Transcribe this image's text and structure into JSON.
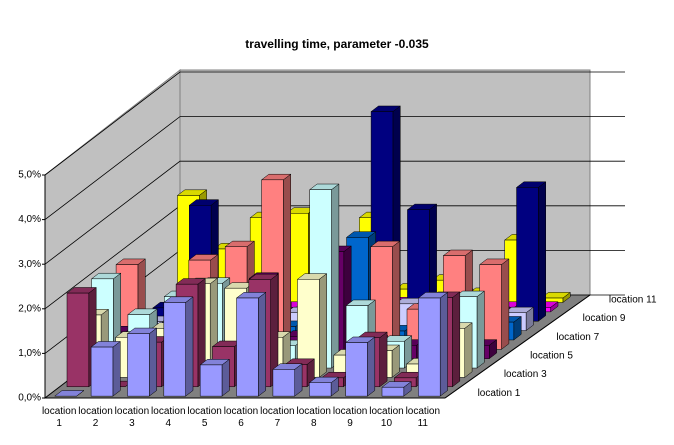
{
  "chart_data": {
    "type": "bar3d",
    "title": "travelling time, parameter -0.035",
    "categories": [
      "location 1",
      "location 2",
      "location 3",
      "location 4",
      "location 5",
      "location 6",
      "location 7",
      "location 8",
      "location 9",
      "location 10",
      "location 11"
    ],
    "ylim": [
      0,
      5
    ],
    "yticks": [
      {
        "value": 0,
        "label": "0,0%"
      },
      {
        "value": 1,
        "label": "1,0%"
      },
      {
        "value": 2,
        "label": "2,0%"
      },
      {
        "value": 3,
        "label": "3,0%"
      },
      {
        "value": 4,
        "label": "4,0%"
      },
      {
        "value": 5,
        "label": "5,0%"
      }
    ],
    "grid": true,
    "series": [
      {
        "name": "location 1",
        "color": "#9999ff",
        "values": [
          0.0,
          1.1,
          1.4,
          2.1,
          0.7,
          2.2,
          0.6,
          0.3,
          1.2,
          0.2,
          2.2
        ]
      },
      {
        "name": null,
        "color": "#993366",
        "values": [
          2.1,
          0.0,
          1.0,
          2.3,
          0.9,
          2.4,
          0.5,
          0.2,
          1.1,
          0.2,
          2.0
        ]
      },
      {
        "name": "location 3",
        "color": "#ffffcc",
        "values": [
          1.4,
          0.9,
          1.1,
          2.1,
          2.0,
          0.9,
          2.2,
          0.5,
          0.6,
          0.3,
          1.1
        ]
      },
      {
        "name": null,
        "color": "#ccffff",
        "values": [
          2.0,
          1.2,
          1.6,
          1.9,
          0.4,
          0.5,
          4.0,
          1.4,
          0.6,
          1.1,
          1.6
        ]
      },
      {
        "name": "location 5",
        "color": "#660066",
        "values": [
          0.6,
          0.5,
          1.6,
          0.4,
          1.8,
          0.5,
          2.4,
          0.4,
          0.3,
          0.4,
          0.3
        ]
      },
      {
        "name": null,
        "color": "#ff8080",
        "values": [
          1.9,
          0.2,
          2.0,
          2.3,
          3.8,
          0.5,
          0.4,
          2.3,
          0.9,
          2.1,
          1.9
        ]
      },
      {
        "name": "location 7",
        "color": "#0066cc",
        "values": [
          0.4,
          0.3,
          0.3,
          0.4,
          0.3,
          0.4,
          2.3,
          0.2,
          0.3,
          0.3,
          0.4
        ]
      },
      {
        "name": null,
        "color": "#ccccff",
        "values": [
          0.2,
          0.3,
          0.4,
          0.5,
          0.4,
          0.3,
          0.5,
          0.6,
          0.4,
          0.3,
          0.4
        ]
      },
      {
        "name": "location 9",
        "color": "#000080",
        "values": [
          0.3,
          2.6,
          0.3,
          0.3,
          0.4,
          0.4,
          4.7,
          2.5,
          0.6,
          0.2,
          3.0
        ]
      },
      {
        "name": null,
        "color": "#ff00ff",
        "values": [
          0.1,
          0.1,
          0.1,
          0.1,
          0.1,
          0.1,
          0.2,
          0.1,
          0.1,
          0.1,
          0.1
        ]
      },
      {
        "name": "location 11",
        "color": "#ffff00",
        "values": [
          2.4,
          1.2,
          1.9,
          2.0,
          0.3,
          1.9,
          0.3,
          0.5,
          0.2,
          1.4,
          0.1
        ]
      }
    ]
  }
}
